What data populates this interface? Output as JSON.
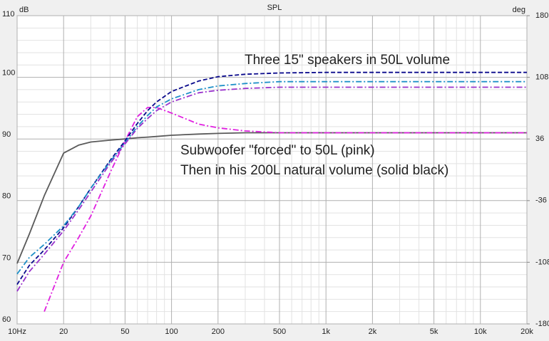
{
  "chart_data": {
    "type": "line",
    "title": "SPL",
    "ylabel": "dB",
    "y2label": "deg",
    "log_x": true,
    "grid": true,
    "xlim": [
      10,
      20000
    ],
    "xticks": [
      {
        "value": 10,
        "label": "10Hz"
      },
      20,
      50,
      100,
      200,
      500,
      {
        "value": 1000,
        "label": "1k"
      },
      {
        "value": 2000,
        "label": "2k"
      },
      {
        "value": 5000,
        "label": "5k"
      },
      {
        "value": 10000,
        "label": "10k"
      },
      {
        "value": 20000,
        "label": "20k"
      }
    ],
    "xminor_ticks": [
      30,
      40,
      60,
      70,
      80,
      90,
      300,
      400,
      600,
      700,
      800,
      900,
      3000,
      4000,
      6000,
      7000,
      8000,
      9000
    ],
    "ylim": [
      60,
      110
    ],
    "yticks": [
      60,
      70,
      80,
      90,
      100,
      110
    ],
    "yminor_ticks": [
      62,
      64,
      66,
      68,
      72,
      74,
      76,
      78,
      82,
      84,
      86,
      88,
      92,
      94,
      96,
      98,
      102,
      104,
      106,
      108
    ],
    "y2lim": [
      -180,
      180
    ],
    "y2ticks": [
      -180,
      -108,
      -36,
      36,
      108,
      180
    ],
    "x": [
      10,
      12,
      15,
      20,
      25,
      30,
      40,
      50,
      60,
      70,
      80,
      100,
      150,
      200,
      300,
      500,
      1000,
      2000,
      5000,
      10000,
      20000
    ],
    "series": [
      {
        "color": "#5a5a5a",
        "dash": "none",
        "values": [
          69.8,
          74.6,
          80.8,
          87.7,
          89,
          89.5,
          89.8,
          90,
          90.2,
          90.3,
          90.4,
          90.6,
          90.8,
          90.9,
          91,
          91,
          91,
          91,
          91,
          91,
          91
        ]
      },
      {
        "color": "#e020e0",
        "dash": "8 3 2 3",
        "values": [
          null,
          null,
          62,
          70,
          74,
          77.5,
          84.5,
          89.7,
          93.6,
          95.1,
          95.1,
          94.2,
          92.4,
          91.8,
          91.3,
          91,
          91,
          91,
          91,
          91,
          91
        ]
      },
      {
        "color": "#0a0a8c",
        "dash": "6 3",
        "values": [
          66.4,
          69.5,
          72,
          75.6,
          79,
          82,
          86.5,
          89.7,
          92.5,
          94.6,
          96,
          97.7,
          99.4,
          100.1,
          100.5,
          100.7,
          100.8,
          100.8,
          100.8,
          100.8,
          100.8
        ]
      },
      {
        "color": "#1e90c8",
        "dash": "8 3 2 3",
        "values": [
          68.1,
          70.8,
          72.9,
          75.9,
          79,
          82,
          86.3,
          89.4,
          92,
          93.8,
          95.2,
          96.5,
          98,
          98.6,
          99,
          99.3,
          99.3,
          99.3,
          99.3,
          99.3,
          99.3
        ]
      },
      {
        "color": "#9932cc",
        "dash": "8 3 2 3",
        "values": [
          65.3,
          68.5,
          71.3,
          75.1,
          78.5,
          81.4,
          86,
          89.2,
          91.7,
          93.3,
          94.6,
          96,
          97.5,
          97.9,
          98.2,
          98.4,
          98.4,
          98.4,
          98.4,
          98.4,
          98.4
        ]
      }
    ],
    "annotations": [
      "Three 15\" speakers in 50L volume",
      "Subwoofer \"forced\" to 50L (pink)",
      "Then in his 200L natural volume (solid black)"
    ],
    "annotation_color": "#e0202a"
  }
}
